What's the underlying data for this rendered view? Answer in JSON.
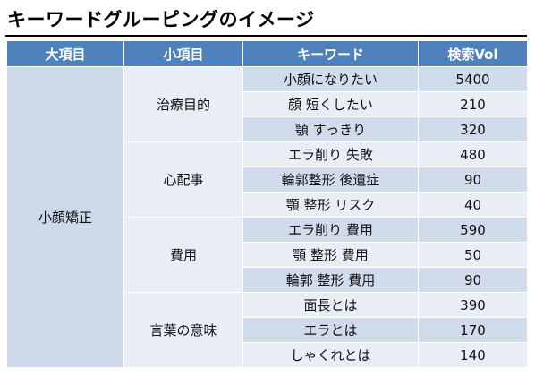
{
  "title": "キーワードグルーピングのイメージ",
  "headers": {
    "major": "大項目",
    "minor": "小項目",
    "keyword": "キーワード",
    "volume": "検索Vol"
  },
  "major_category": "小顔矯正",
  "groups": [
    {
      "name": "治療目的",
      "rows": [
        {
          "keyword": "小顔になりたい",
          "volume": "5400"
        },
        {
          "keyword": "顔 短くしたい",
          "volume": "210"
        },
        {
          "keyword": "顎 すっきり",
          "volume": "320"
        }
      ]
    },
    {
      "name": "心配事",
      "rows": [
        {
          "keyword": "エラ削り 失敗",
          "volume": "480"
        },
        {
          "keyword": "輪郭整形 後遺症",
          "volume": "90"
        },
        {
          "keyword": "顎 整形 リスク",
          "volume": "40"
        }
      ]
    },
    {
      "name": "費用",
      "rows": [
        {
          "keyword": "エラ削り 費用",
          "volume": "590"
        },
        {
          "keyword": "顎 整形 費用",
          "volume": "50"
        },
        {
          "keyword": "輪郭 整形 費用",
          "volume": "90"
        }
      ]
    },
    {
      "name": "言葉の意味",
      "rows": [
        {
          "keyword": "面長とは",
          "volume": "390"
        },
        {
          "keyword": "エラとは",
          "volume": "170"
        },
        {
          "keyword": "しゃくれとは",
          "volume": "140"
        }
      ]
    }
  ],
  "colors": {
    "header_bg": "#4f81bd",
    "header_text": "#ffffff",
    "major_bg": "#cdd9ea",
    "minor_bg": "#e9eef6",
    "row_dark": "#d0dbeb",
    "row_light": "#e9eef6"
  }
}
